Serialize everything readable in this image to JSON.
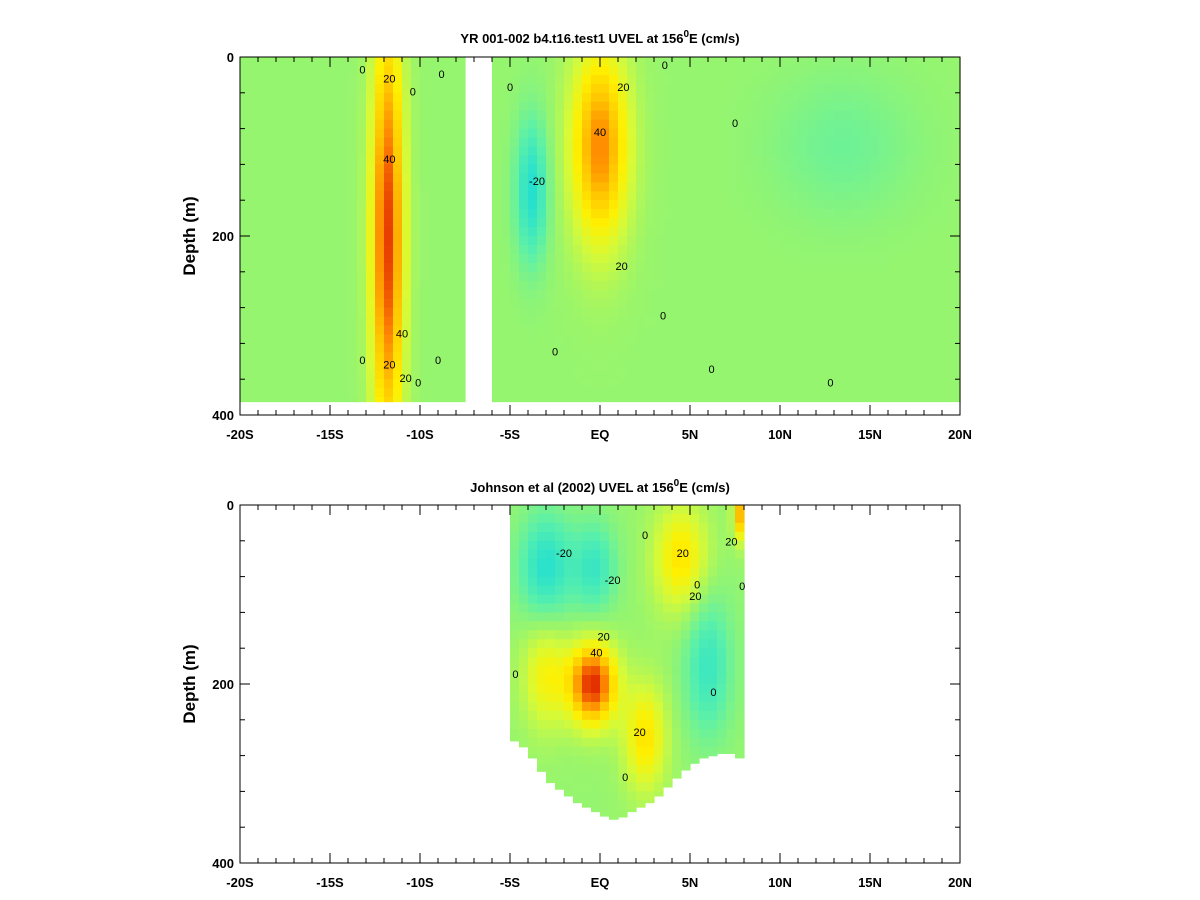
{
  "chart_data": [
    {
      "type": "heatmap",
      "title": {
        "pre": "YR 001-002 b4.t16.test1 UVEL at 156",
        "sup": "0",
        "post": "E (cm/s)"
      },
      "ylabel": "Depth (m)",
      "xlim": [
        -20,
        20
      ],
      "ylim": [
        0,
        400
      ],
      "y_inverted": true,
      "xticks": [
        {
          "value": -20,
          "label": "-20S"
        },
        {
          "value": -15,
          "label": "-15S"
        },
        {
          "value": -10,
          "label": "-10S"
        },
        {
          "value": -5,
          "label": "-5S"
        },
        {
          "value": 0,
          "label": "EQ"
        },
        {
          "value": 5,
          "label": "5N"
        },
        {
          "value": 10,
          "label": "10N"
        },
        {
          "value": 15,
          "label": "15N"
        },
        {
          "value": 20,
          "label": "20N"
        }
      ],
      "yticks": [
        {
          "value": 0,
          "label": "0"
        },
        {
          "value": 200,
          "label": "200"
        },
        {
          "value": 400,
          "label": "400"
        }
      ],
      "data_extent": {
        "x": [
          -20,
          20
        ],
        "depth_max": 385
      },
      "gap_columns": [
        [
          -7.7,
          -6.2
        ]
      ],
      "features": [
        {
          "name": "southern jet",
          "center": [
            -11.8,
            200
          ],
          "radius": [
            0.9,
            240
          ],
          "velocity": 52
        },
        {
          "name": "equatorial undercurrent",
          "center": [
            0.0,
            100
          ],
          "radius": [
            1.6,
            110
          ],
          "velocity": 42
        },
        {
          "name": "westward current",
          "center": [
            -3.8,
            150
          ],
          "radius": [
            0.9,
            80
          ],
          "velocity": -26
        },
        {
          "name": "northern westward",
          "center": [
            13.5,
            100
          ],
          "radius": [
            4.0,
            80
          ],
          "velocity": -8
        }
      ],
      "contour_labels": [
        {
          "x": -13.2,
          "y": 15,
          "text": "0"
        },
        {
          "x": -11.7,
          "y": 25,
          "text": "20"
        },
        {
          "x": -11.7,
          "y": 115,
          "text": "40"
        },
        {
          "x": -10.4,
          "y": 40,
          "text": "0"
        },
        {
          "x": -8.8,
          "y": 20,
          "text": "0"
        },
        {
          "x": -13.2,
          "y": 340,
          "text": "0"
        },
        {
          "x": -11.7,
          "y": 345,
          "text": "20"
        },
        {
          "x": -11.0,
          "y": 310,
          "text": "40"
        },
        {
          "x": -10.8,
          "y": 360,
          "text": "20"
        },
        {
          "x": -9.0,
          "y": 340,
          "text": "0"
        },
        {
          "x": -10.1,
          "y": 365,
          "text": "0"
        },
        {
          "x": -5.0,
          "y": 35,
          "text": "0"
        },
        {
          "x": 1.3,
          "y": 35,
          "text": "20"
        },
        {
          "x": 0.0,
          "y": 85,
          "text": "40"
        },
        {
          "x": -3.5,
          "y": 140,
          "text": "-20"
        },
        {
          "x": 1.2,
          "y": 235,
          "text": "20"
        },
        {
          "x": -2.5,
          "y": 330,
          "text": "0"
        },
        {
          "x": 3.5,
          "y": 290,
          "text": "0"
        },
        {
          "x": 6.2,
          "y": 350,
          "text": "0"
        },
        {
          "x": 7.5,
          "y": 75,
          "text": "0"
        },
        {
          "x": 3.6,
          "y": 10,
          "text": "0"
        },
        {
          "x": 12.8,
          "y": 365,
          "text": "0"
        }
      ]
    },
    {
      "type": "heatmap",
      "title": {
        "pre": "Johnson et al (2002) UVEL at 156",
        "sup": "0",
        "post": "E (cm/s)"
      },
      "ylabel": "Depth (m)",
      "xlim": [
        -20,
        20
      ],
      "ylim": [
        0,
        400
      ],
      "y_inverted": true,
      "xticks": [
        {
          "value": -20,
          "label": "-20S"
        },
        {
          "value": -15,
          "label": "-15S"
        },
        {
          "value": -10,
          "label": "-10S"
        },
        {
          "value": -5,
          "label": "-5S"
        },
        {
          "value": 0,
          "label": "EQ"
        },
        {
          "value": 5,
          "label": "5N"
        },
        {
          "value": 10,
          "label": "10N"
        },
        {
          "value": 15,
          "label": "15N"
        },
        {
          "value": 20,
          "label": "20N"
        }
      ],
      "yticks": [
        {
          "value": 0,
          "label": "0"
        },
        {
          "value": 200,
          "label": "200"
        },
        {
          "value": 400,
          "label": "400"
        }
      ],
      "data_extent": {
        "x": [
          -5,
          8
        ]
      },
      "bottom_profile": [
        [
          -5,
          262
        ],
        [
          -4.5,
          265
        ],
        [
          -4,
          275
        ],
        [
          -3.5,
          290
        ],
        [
          -3,
          305
        ],
        [
          -2.5,
          315
        ],
        [
          -2,
          320
        ],
        [
          -1.5,
          330
        ],
        [
          -1,
          335
        ],
        [
          -0.5,
          340
        ],
        [
          0,
          345
        ],
        [
          0.5,
          350
        ],
        [
          1,
          352
        ],
        [
          1.5,
          345
        ],
        [
          2,
          340
        ],
        [
          2.5,
          335
        ],
        [
          3,
          330
        ],
        [
          3.5,
          320
        ],
        [
          4,
          310
        ],
        [
          4.5,
          300
        ],
        [
          5,
          292
        ],
        [
          5.5,
          285
        ],
        [
          6,
          280
        ],
        [
          6.5,
          280
        ],
        [
          7,
          275
        ],
        [
          7.5,
          280
        ],
        [
          8,
          285
        ]
      ],
      "features": [
        {
          "name": "undercurrent core",
          "center": [
            -0.4,
            200
          ],
          "radius": [
            1.3,
            45
          ],
          "velocity": 55
        },
        {
          "name": "southern westward",
          "center": [
            -3.0,
            70
          ],
          "radius": [
            1.5,
            60
          ],
          "velocity": -25
        },
        {
          "name": "equatorial westward",
          "center": [
            -0.3,
            70
          ],
          "radius": [
            1.2,
            50
          ],
          "velocity": -20
        },
        {
          "name": "southern eastward",
          "center": [
            -3.0,
            190
          ],
          "radius": [
            1.3,
            60
          ],
          "velocity": 20
        },
        {
          "name": "deep eastward",
          "center": [
            2.5,
            260
          ],
          "radius": [
            1.2,
            60
          ],
          "velocity": 25
        },
        {
          "name": "northern eastward",
          "center": [
            4.5,
            60
          ],
          "radius": [
            1.5,
            60
          ],
          "velocity": 25
        },
        {
          "name": "off-equator westward",
          "center": [
            6.0,
            180
          ],
          "radius": [
            1.3,
            80
          ],
          "velocity": -20
        },
        {
          "name": "surface jet",
          "center": [
            7.8,
            10
          ],
          "radius": [
            0.4,
            30
          ],
          "velocity": 35
        }
      ],
      "contour_labels": [
        {
          "x": -2.0,
          "y": 55,
          "text": "-20"
        },
        {
          "x": 0.7,
          "y": 85,
          "text": "-20"
        },
        {
          "x": 2.5,
          "y": 35,
          "text": "0"
        },
        {
          "x": 4.6,
          "y": 55,
          "text": "20"
        },
        {
          "x": 7.3,
          "y": 42,
          "text": "20"
        },
        {
          "x": 5.4,
          "y": 90,
          "text": "0"
        },
        {
          "x": 5.3,
          "y": 103,
          "text": "20"
        },
        {
          "x": 7.9,
          "y": 92,
          "text": "0"
        },
        {
          "x": 0.2,
          "y": 148,
          "text": "20"
        },
        {
          "x": -0.2,
          "y": 166,
          "text": "40"
        },
        {
          "x": 6.3,
          "y": 210,
          "text": "0"
        },
        {
          "x": 2.2,
          "y": 255,
          "text": "20"
        },
        {
          "x": 1.4,
          "y": 305,
          "text": "0"
        },
        {
          "x": -4.7,
          "y": 190,
          "text": "0"
        }
      ]
    }
  ]
}
